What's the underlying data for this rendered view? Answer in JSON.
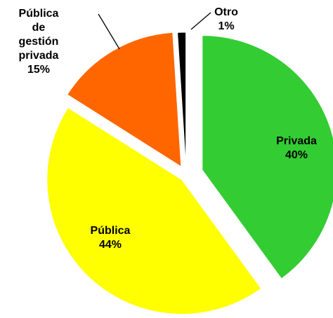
{
  "chart_data": {
    "type": "pie",
    "categories": [
      "Privada",
      "Pública",
      "Pública de gestión privada",
      "Otro"
    ],
    "values": [
      40,
      44,
      15,
      1
    ],
    "value_labels": [
      "40%",
      "44%",
      "15%",
      "1%"
    ],
    "colors": [
      "#33cc33",
      "#ffff00",
      "#ff6600",
      "#000000"
    ]
  }
}
